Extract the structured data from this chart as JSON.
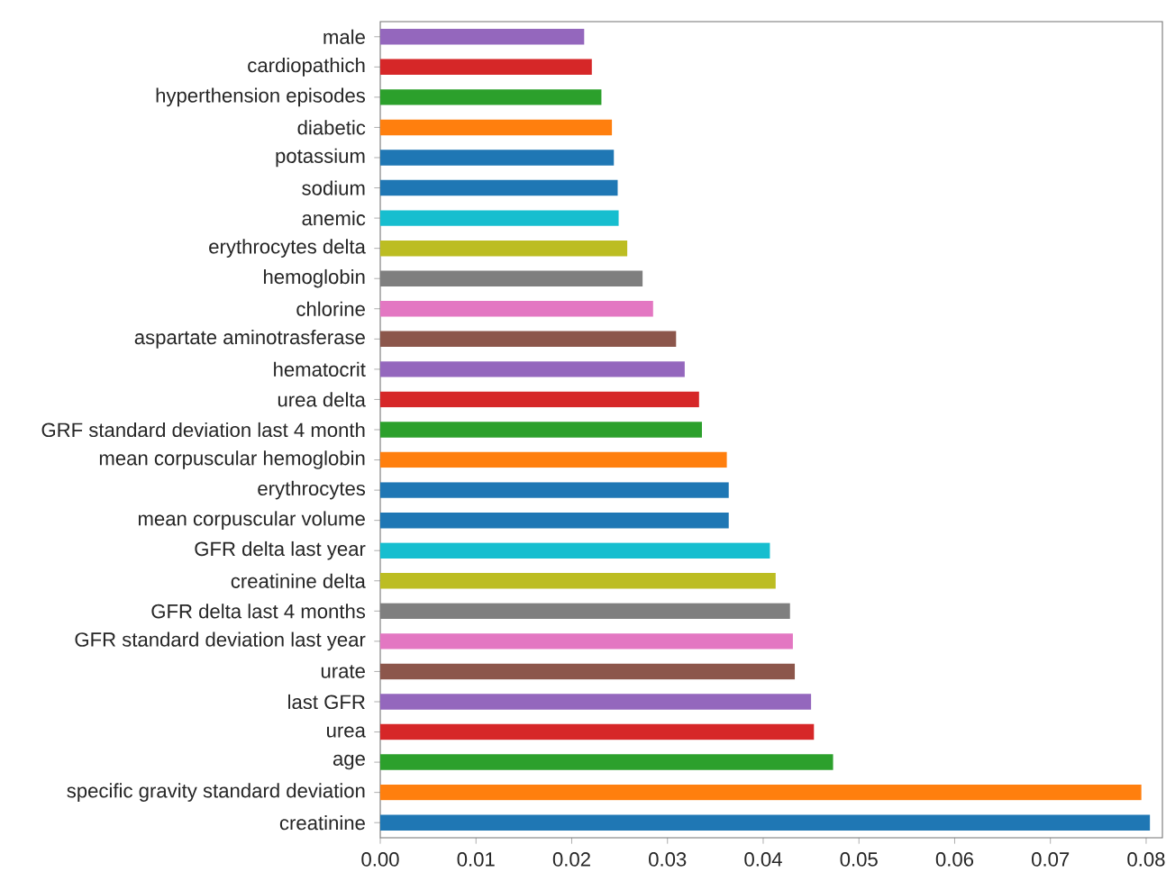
{
  "chart_data": {
    "type": "bar",
    "orientation": "horizontal",
    "categories": [
      "male",
      "cardiopathich",
      "hyperthension episodes",
      "diabetic",
      "potassium",
      "sodium",
      "anemic",
      "erythrocytes delta",
      "hemoglobin",
      "chlorine",
      "aspartate aminotrasferase",
      "hematocrit",
      "urea delta",
      "GRF standard deviation last 4 month",
      "mean corpuscular hemoglobin",
      "erythrocytes",
      "mean corpuscular volume",
      "GFR delta last year",
      "creatinine delta",
      "GFR delta last 4 months",
      "GFR standard deviation last year",
      "urate",
      "last GFR",
      "urea",
      "age",
      "specific gravity standard deviation",
      "creatinine"
    ],
    "values": [
      0.0213,
      0.0221,
      0.0231,
      0.0242,
      0.0244,
      0.0248,
      0.0249,
      0.0258,
      0.0274,
      0.0285,
      0.0309,
      0.0318,
      0.0333,
      0.0336,
      0.0362,
      0.0364,
      0.0364,
      0.0407,
      0.0413,
      0.0428,
      0.0431,
      0.0433,
      0.045,
      0.0453,
      0.0473,
      0.0795,
      0.0804
    ],
    "colors": [
      "#9467bd",
      "#d62728",
      "#2ca02c",
      "#ff7f0e",
      "#1f77b4",
      "#1f77b4",
      "#17becf",
      "#bcbd22",
      "#7f7f7f",
      "#e377c2",
      "#8c564b",
      "#9467bd",
      "#d62728",
      "#2ca02c",
      "#ff7f0e",
      "#1f77b4",
      "#1f77b4",
      "#17becf",
      "#bcbd22",
      "#7f7f7f",
      "#e377c2",
      "#8c564b",
      "#9467bd",
      "#d62728",
      "#2ca02c",
      "#ff7f0e",
      "#1f77b4"
    ],
    "xlim": [
      0,
      0.0817
    ],
    "xticks": [
      {
        "value": 0,
        "label": "0.00"
      },
      {
        "value": 0.01,
        "label": "0.01"
      },
      {
        "value": 0.02,
        "label": "0.02"
      },
      {
        "value": 0.03,
        "label": "0.03"
      },
      {
        "value": 0.04,
        "label": "0.04"
      },
      {
        "value": 0.05,
        "label": "0.05"
      },
      {
        "value": 0.06,
        "label": "0.06"
      },
      {
        "value": 0.07,
        "label": "0.07"
      },
      {
        "value": 0.08,
        "label": "0.08"
      }
    ],
    "grid": false
  }
}
